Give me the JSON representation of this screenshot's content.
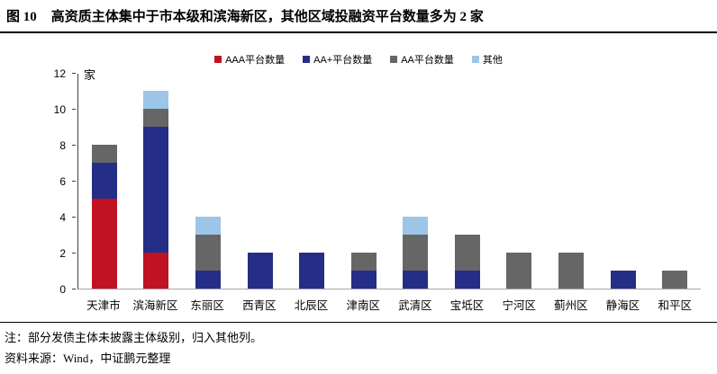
{
  "title": {
    "figure_no": "图 10",
    "text": "高资质主体集中于市本级和滨海新区，其他区域投融资平台数量多为 2 家"
  },
  "notes": {
    "note": "注：部分发债主体未披露主体级别，归入其他列。",
    "source": "资料来源：Wind，中证鹏元整理"
  },
  "chart_data": {
    "type": "bar",
    "stacked": true,
    "unit_label": "家",
    "categories": [
      "天津市",
      "滨海新区",
      "东丽区",
      "西青区",
      "北辰区",
      "津南区",
      "武清区",
      "宝坻区",
      "宁河区",
      "蓟州区",
      "静海区",
      "和平区"
    ],
    "series": [
      {
        "name": "AAA平台数量",
        "color": "#c11223",
        "values": [
          5,
          2,
          0,
          0,
          0,
          0,
          0,
          0,
          0,
          0,
          0,
          0
        ]
      },
      {
        "name": "AA+平台数量",
        "color": "#252e86",
        "values": [
          2,
          7,
          1,
          2,
          2,
          1,
          1,
          1,
          0,
          0,
          1,
          0
        ]
      },
      {
        "name": "AA平台数量",
        "color": "#666666",
        "values": [
          1,
          1,
          2,
          0,
          0,
          1,
          2,
          2,
          2,
          2,
          0,
          1
        ]
      },
      {
        "name": "其他",
        "color": "#9cc5e8",
        "values": [
          0,
          1,
          1,
          0,
          0,
          0,
          1,
          0,
          0,
          0,
          0,
          0
        ]
      }
    ],
    "totals": [
      8,
      11,
      4,
      2,
      2,
      2,
      4,
      3,
      2,
      2,
      1,
      1
    ],
    "y_ticks": [
      0,
      2,
      4,
      6,
      8,
      10,
      12
    ],
    "ylim": [
      0,
      12
    ],
    "grid": false,
    "legend_position": "top"
  }
}
